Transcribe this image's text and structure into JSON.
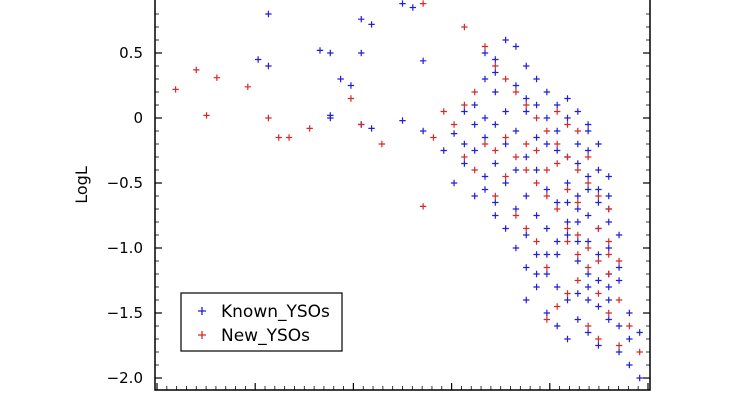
{
  "chart_data": {
    "type": "scatter",
    "ylabel": "LogL",
    "xlabel": "",
    "ylim": [
      -2.05,
      0.9
    ],
    "xlim": [
      3.8,
      3.32
    ],
    "yticks": [
      {
        "value": 0.5,
        "label": "0.5"
      },
      {
        "value": 0,
        "label": "0"
      },
      {
        "value": -0.5,
        "label": "−0.5"
      },
      {
        "value": -1.0,
        "label": "−1.0"
      },
      {
        "value": -1.5,
        "label": "−1.5"
      },
      {
        "value": -2.0,
        "label": "−2.0"
      }
    ],
    "legend": {
      "placement": "lower-left"
    },
    "series": [
      {
        "name": "Known_YSOs",
        "color": "#1f1fd6",
        "marker": "plus",
        "points": [
          [
            3.57,
            0.93
          ],
          [
            3.56,
            0.88
          ],
          [
            3.55,
            0.85
          ],
          [
            3.69,
            0.8
          ],
          [
            3.6,
            0.76
          ],
          [
            3.59,
            0.72
          ],
          [
            3.64,
            0.52
          ],
          [
            3.63,
            0.5
          ],
          [
            3.6,
            0.5
          ],
          [
            3.48,
            0.5
          ],
          [
            3.47,
            0.45
          ],
          [
            3.54,
            0.44
          ],
          [
            3.69,
            0.4
          ],
          [
            3.62,
            0.3
          ],
          [
            3.61,
            0.25
          ],
          [
            3.63,
            0.02
          ],
          [
            3.63,
            0.0
          ],
          [
            3.6,
            -0.05
          ],
          [
            3.59,
            -0.08
          ],
          [
            3.56,
            -0.02
          ],
          [
            3.54,
            -0.1
          ],
          [
            3.51,
            -0.12
          ],
          [
            3.52,
            -0.25
          ],
          [
            3.7,
            0.45
          ],
          [
            3.48,
            0.3
          ],
          [
            3.47,
            0.2
          ],
          [
            3.49,
            0.1
          ],
          [
            3.5,
            0.05
          ],
          [
            3.46,
            0.6
          ],
          [
            3.45,
            0.55
          ],
          [
            3.44,
            0.4
          ],
          [
            3.43,
            0.3
          ],
          [
            3.42,
            0.2
          ],
          [
            3.44,
            0.05
          ],
          [
            3.45,
            -0.1
          ],
          [
            3.46,
            -0.2
          ],
          [
            3.47,
            -0.35
          ],
          [
            3.48,
            -0.45
          ],
          [
            3.49,
            -0.6
          ],
          [
            3.47,
            -0.75
          ],
          [
            3.46,
            -0.85
          ],
          [
            3.45,
            -1.0
          ],
          [
            3.43,
            -0.4
          ],
          [
            3.42,
            -0.55
          ],
          [
            3.41,
            -0.65
          ],
          [
            3.4,
            -0.5
          ],
          [
            3.39,
            -0.7
          ],
          [
            3.4,
            -0.9
          ],
          [
            3.41,
            -1.05
          ],
          [
            3.42,
            -1.2
          ],
          [
            3.43,
            -1.3
          ],
          [
            3.44,
            -1.4
          ],
          [
            3.42,
            -1.5
          ],
          [
            3.41,
            -1.6
          ],
          [
            3.4,
            -1.7
          ],
          [
            3.39,
            -1.35
          ],
          [
            3.38,
            -1.2
          ],
          [
            3.37,
            -1.05
          ],
          [
            3.38,
            -0.95
          ],
          [
            3.39,
            -0.8
          ],
          [
            3.37,
            -0.85
          ],
          [
            3.36,
            -0.7
          ],
          [
            3.36,
            -1.0
          ],
          [
            3.35,
            -1.15
          ],
          [
            3.36,
            -1.3
          ],
          [
            3.37,
            -1.45
          ],
          [
            3.36,
            -1.55
          ],
          [
            3.35,
            -1.6
          ],
          [
            3.34,
            -1.7
          ],
          [
            3.35,
            -1.8
          ],
          [
            3.34,
            -1.9
          ],
          [
            3.33,
            -2.0
          ],
          [
            3.4,
            0.0
          ],
          [
            3.41,
            -0.1
          ],
          [
            3.42,
            -0.2
          ],
          [
            3.43,
            -0.15
          ],
          [
            3.44,
            -0.3
          ],
          [
            3.45,
            -0.4
          ],
          [
            3.41,
            0.1
          ],
          [
            3.4,
            0.15
          ],
          [
            3.39,
            0.05
          ],
          [
            3.38,
            -0.05
          ],
          [
            3.38,
            -0.25
          ],
          [
            3.39,
            -0.35
          ],
          [
            3.4,
            -0.3
          ],
          [
            3.38,
            -0.45
          ],
          [
            3.37,
            -0.55
          ],
          [
            3.36,
            -0.6
          ],
          [
            3.37,
            -0.4
          ],
          [
            3.36,
            -0.45
          ],
          [
            3.5,
            -0.35
          ],
          [
            3.51,
            -0.5
          ],
          [
            3.49,
            -0.25
          ],
          [
            3.48,
            -0.15
          ],
          [
            3.47,
            -0.05
          ],
          [
            3.46,
            0.05
          ],
          [
            3.44,
            -0.6
          ],
          [
            3.43,
            -0.75
          ],
          [
            3.42,
            -0.85
          ],
          [
            3.44,
            -0.9
          ],
          [
            3.43,
            -1.05
          ],
          [
            3.41,
            -1.3
          ],
          [
            3.4,
            -1.4
          ],
          [
            3.39,
            -1.55
          ],
          [
            3.38,
            -1.65
          ],
          [
            3.37,
            -1.75
          ],
          [
            3.39,
            -1.1
          ],
          [
            3.38,
            -1.4
          ],
          [
            3.45,
            0.25
          ],
          [
            3.44,
            0.15
          ],
          [
            3.43,
            0.1
          ],
          [
            3.42,
            0.0
          ],
          [
            3.41,
            -0.25
          ],
          [
            3.4,
            -0.65
          ],
          [
            3.39,
            -0.95
          ],
          [
            3.38,
            -0.75
          ],
          [
            3.37,
            -0.65
          ],
          [
            3.36,
            -0.8
          ],
          [
            3.35,
            -0.9
          ],
          [
            3.35,
            -1.25
          ],
          [
            3.36,
            -1.4
          ],
          [
            3.34,
            -1.5
          ],
          [
            3.33,
            -1.65
          ],
          [
            3.36,
            -1.2
          ],
          [
            3.37,
            -1.25
          ],
          [
            3.38,
            -1.3
          ],
          [
            3.47,
            0.35
          ],
          [
            3.48,
            0.0
          ],
          [
            3.49,
            -0.05
          ],
          [
            3.5,
            -0.2
          ],
          [
            3.48,
            -0.55
          ],
          [
            3.47,
            -0.65
          ],
          [
            3.46,
            -0.5
          ],
          [
            3.45,
            -0.7
          ],
          [
            3.44,
            -1.15
          ],
          [
            3.43,
            -1.2
          ],
          [
            3.42,
            -1.05
          ],
          [
            3.41,
            -0.95
          ],
          [
            3.4,
            -0.8
          ],
          [
            3.39,
            -0.6
          ],
          [
            3.38,
            -0.55
          ],
          [
            3.37,
            -0.2
          ],
          [
            3.38,
            -0.1
          ],
          [
            3.39,
            -0.2
          ]
        ]
      },
      {
        "name": "New_YSOs",
        "color": "#d42a2a",
        "marker": "plus",
        "points": [
          [
            3.55,
            0.95
          ],
          [
            3.54,
            0.88
          ],
          [
            3.5,
            0.7
          ],
          [
            3.78,
            0.22
          ],
          [
            3.76,
            0.37
          ],
          [
            3.74,
            0.31
          ],
          [
            3.75,
            0.02
          ],
          [
            3.71,
            0.24
          ],
          [
            3.69,
            0.0
          ],
          [
            3.68,
            -0.15
          ],
          [
            3.67,
            -0.15
          ],
          [
            3.65,
            -0.08
          ],
          [
            3.61,
            0.15
          ],
          [
            3.6,
            -0.05
          ],
          [
            3.58,
            -0.2
          ],
          [
            3.54,
            -0.68
          ],
          [
            3.53,
            -0.15
          ],
          [
            3.48,
            0.55
          ],
          [
            3.47,
            0.4
          ],
          [
            3.46,
            0.3
          ],
          [
            3.45,
            0.2
          ],
          [
            3.44,
            0.1
          ],
          [
            3.43,
            0.0
          ],
          [
            3.42,
            -0.1
          ],
          [
            3.41,
            -0.2
          ],
          [
            3.4,
            -0.3
          ],
          [
            3.39,
            -0.4
          ],
          [
            3.38,
            -0.5
          ],
          [
            3.37,
            -0.6
          ],
          [
            3.36,
            -0.7
          ],
          [
            3.44,
            -0.4
          ],
          [
            3.43,
            -0.5
          ],
          [
            3.42,
            -0.6
          ],
          [
            3.41,
            -0.7
          ],
          [
            3.4,
            -0.85
          ],
          [
            3.39,
            -0.9
          ],
          [
            3.38,
            -1.0
          ],
          [
            3.37,
            -1.1
          ],
          [
            3.36,
            -1.2
          ],
          [
            3.35,
            -1.4
          ],
          [
            3.34,
            -1.6
          ],
          [
            3.35,
            -1.75
          ],
          [
            3.39,
            -1.25
          ],
          [
            3.4,
            -1.35
          ],
          [
            3.41,
            -1.45
          ],
          [
            3.42,
            -1.55
          ],
          [
            3.38,
            -1.6
          ],
          [
            3.37,
            -1.7
          ],
          [
            3.46,
            -0.45
          ],
          [
            3.47,
            -0.6
          ],
          [
            3.45,
            -0.75
          ],
          [
            3.44,
            -0.85
          ],
          [
            3.43,
            -0.95
          ],
          [
            3.42,
            -1.15
          ],
          [
            3.49,
            0.2
          ],
          [
            3.5,
            0.1
          ],
          [
            3.51,
            -0.05
          ],
          [
            3.52,
            0.05
          ],
          [
            3.5,
            -0.3
          ],
          [
            3.49,
            -0.4
          ],
          [
            3.48,
            -0.2
          ],
          [
            3.47,
            -0.25
          ],
          [
            3.46,
            -0.15
          ],
          [
            3.45,
            -0.3
          ],
          [
            3.4,
            -0.55
          ],
          [
            3.39,
            -0.65
          ],
          [
            3.41,
            -0.35
          ],
          [
            3.42,
            -0.4
          ],
          [
            3.43,
            -0.25
          ],
          [
            3.44,
            -0.2
          ],
          [
            3.38,
            -0.3
          ],
          [
            3.39,
            -0.1
          ],
          [
            3.4,
            -0.05
          ],
          [
            3.41,
            0.05
          ],
          [
            3.4,
            -0.95
          ],
          [
            3.39,
            -1.05
          ],
          [
            3.38,
            -1.15
          ],
          [
            3.37,
            -0.85
          ],
          [
            3.36,
            -0.95
          ],
          [
            3.36,
            -1.05
          ],
          [
            3.35,
            -1.1
          ],
          [
            3.37,
            -1.35
          ],
          [
            3.36,
            -1.5
          ],
          [
            3.33,
            -1.8
          ]
        ]
      }
    ]
  }
}
